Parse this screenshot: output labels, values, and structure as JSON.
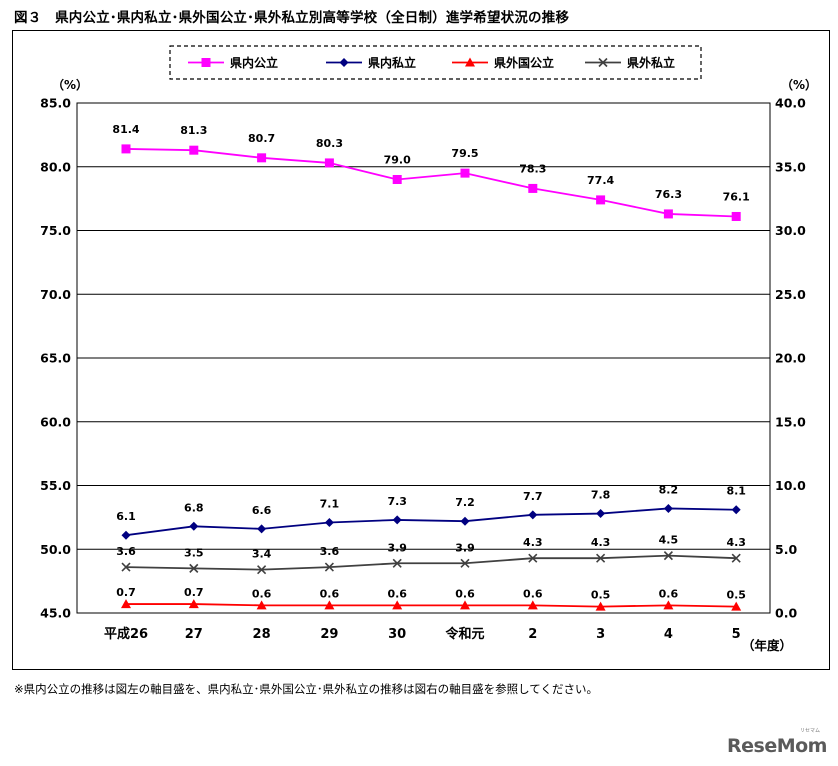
{
  "title": "図３　県内公立･県内私立･県外国公立･県外私立別高等学校（全日制）進学希望状況の推移",
  "footnote": "※県内公立の推移は図左の軸目盛を、県内私立･県外国公立･県外私立の推移は図右の軸目盛を参照してください。",
  "logo": "ReseMom",
  "logo_sub": "リセマム",
  "chart_data": {
    "type": "line",
    "categories": [
      "平成26",
      "27",
      "28",
      "29",
      "30",
      "令和元",
      "2",
      "3",
      "4",
      "5"
    ],
    "xunit": "（年度）",
    "y_left": {
      "unit": "（%）",
      "min": 45,
      "max": 85,
      "step": 5
    },
    "y_right": {
      "unit": "（%）",
      "min": 0,
      "max": 40,
      "step": 5
    },
    "grid": true,
    "legend_position": "top",
    "series": [
      {
        "name": "県内公立",
        "axis": "left",
        "color": "#ff00ff",
        "marker": "square",
        "values": [
          81.4,
          81.3,
          80.7,
          80.3,
          79.0,
          79.5,
          78.3,
          77.4,
          76.3,
          76.1
        ]
      },
      {
        "name": "県内私立",
        "axis": "right",
        "color": "#000080",
        "marker": "diamond",
        "values": [
          6.1,
          6.8,
          6.6,
          7.1,
          7.3,
          7.2,
          7.7,
          7.8,
          8.2,
          8.1
        ]
      },
      {
        "name": "県外国公立",
        "axis": "right",
        "color": "#ff0000",
        "marker": "triangle",
        "values": [
          0.7,
          0.7,
          0.6,
          0.6,
          0.6,
          0.6,
          0.6,
          0.5,
          0.6,
          0.5
        ]
      },
      {
        "name": "県外私立",
        "axis": "right",
        "color": "#404040",
        "marker": "x",
        "values": [
          3.6,
          3.5,
          3.4,
          3.6,
          3.9,
          3.9,
          4.3,
          4.3,
          4.5,
          4.3
        ]
      }
    ]
  }
}
